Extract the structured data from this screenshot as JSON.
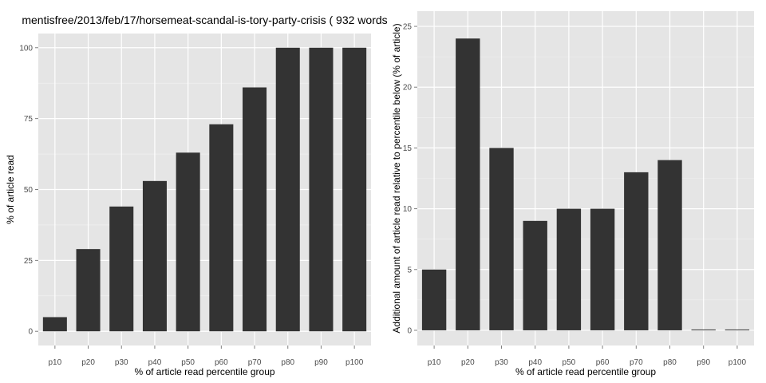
{
  "chart_data": [
    {
      "type": "bar",
      "title": "mentisfree/2013/feb/17/horsemeat-scandal-is-tory-party-crisis ( 932 words",
      "xlabel": "% of article read percentile group",
      "ylabel": "% of article read",
      "categories": [
        "p10",
        "p20",
        "p30",
        "p40",
        "p50",
        "p60",
        "p70",
        "p80",
        "p90",
        "p100"
      ],
      "values": [
        5,
        29,
        44,
        53,
        63,
        73,
        86,
        100,
        100,
        100
      ],
      "ylim": [
        0,
        100
      ],
      "yticks": [
        "0",
        "25",
        "50",
        "75",
        "100"
      ],
      "grid": true
    },
    {
      "type": "bar",
      "title": "",
      "xlabel": "% of article read percentile group",
      "ylabel": "Additional amount of article read relative to percentile below (% of article)",
      "categories": [
        "p10",
        "p20",
        "p30",
        "p40",
        "p50",
        "p60",
        "p70",
        "p80",
        "p90",
        "p100"
      ],
      "values": [
        5,
        24,
        15,
        9,
        10,
        10,
        13,
        14,
        0,
        0
      ],
      "ylim": [
        0,
        25
      ],
      "yticks": [
        "0",
        "5",
        "10",
        "15",
        "20",
        "25"
      ],
      "grid": true
    }
  ],
  "colors": {
    "bar": "#333333",
    "panel": "#e5e5e5",
    "grid": "#ffffff"
  }
}
